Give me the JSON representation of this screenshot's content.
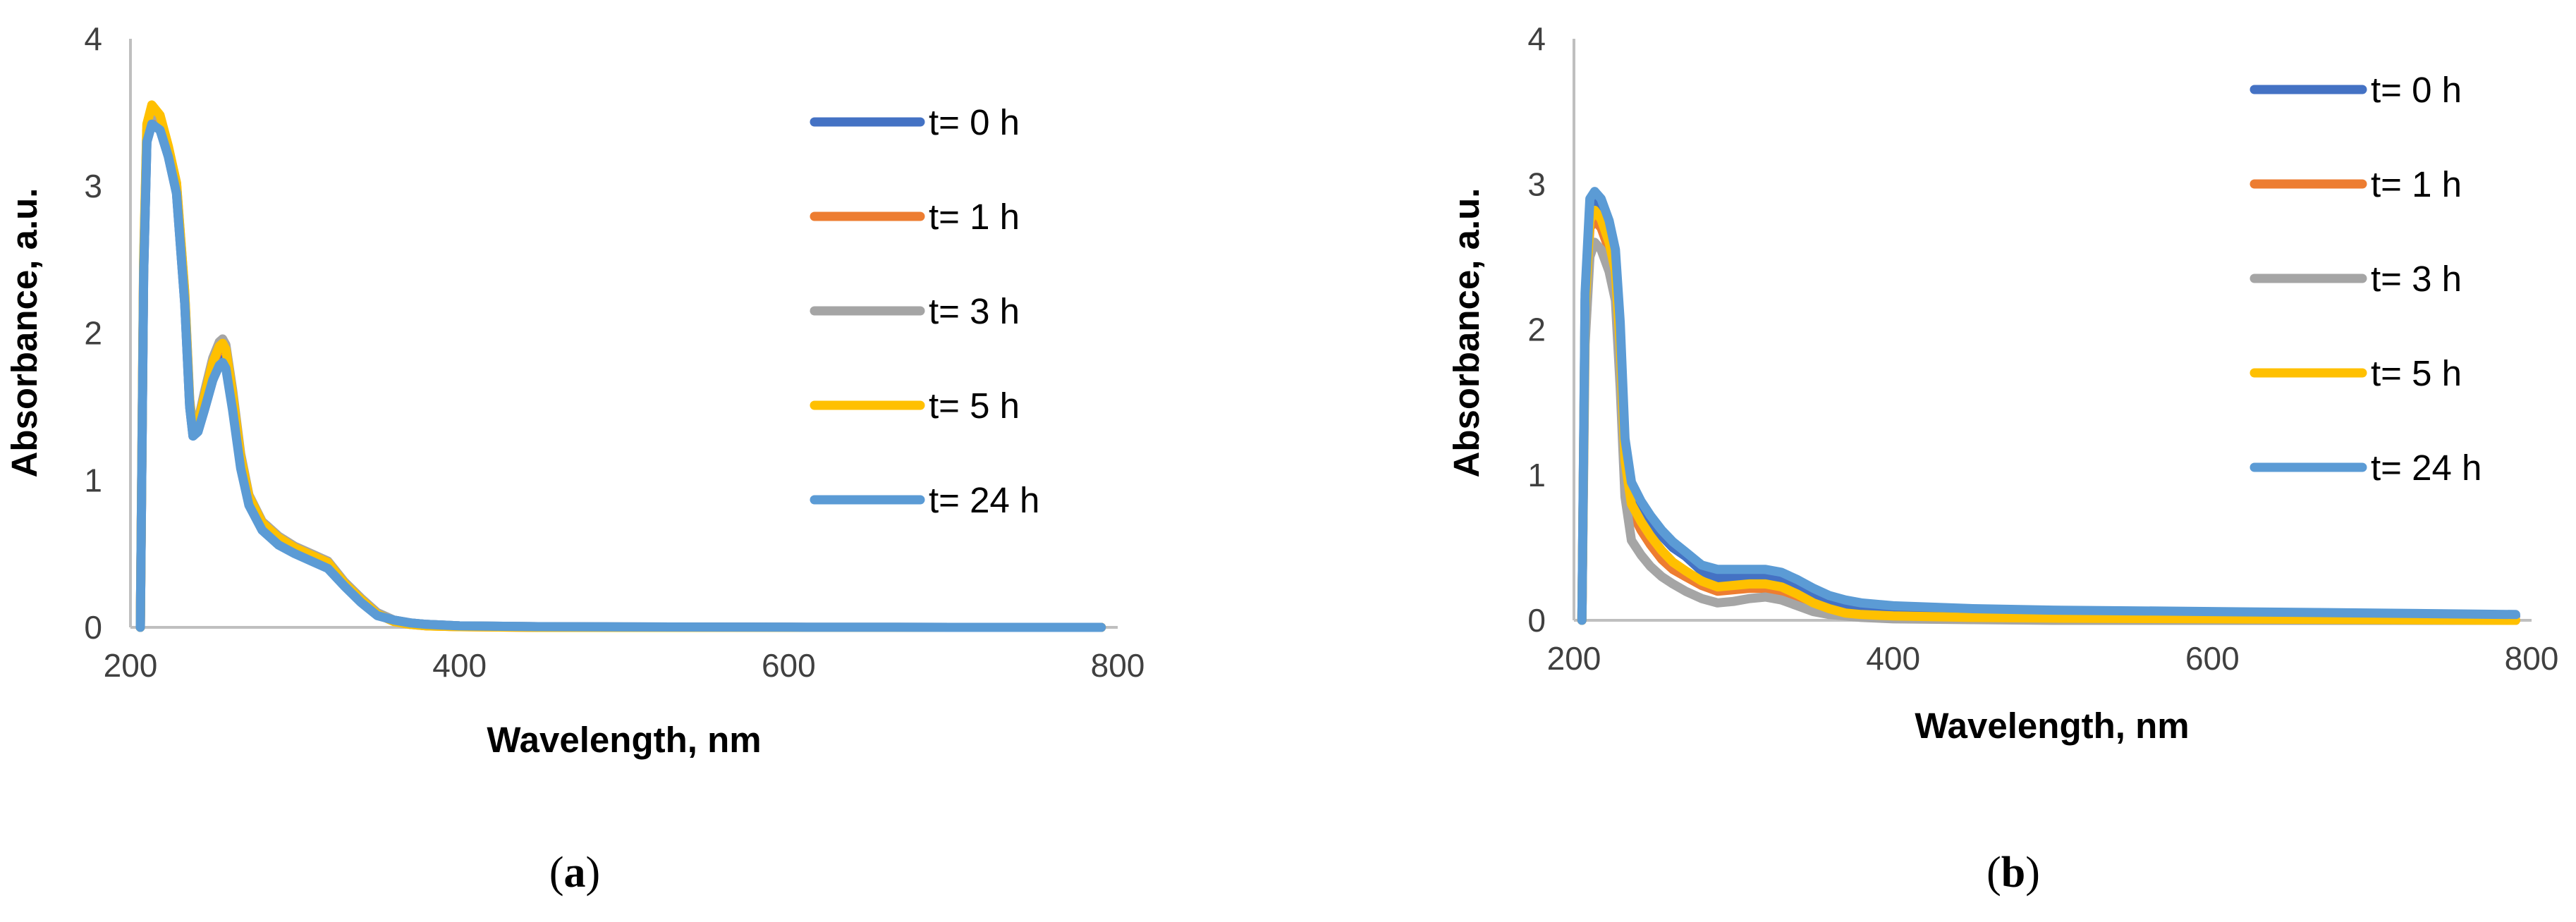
{
  "chart_data": [
    {
      "panel": "a",
      "type": "line",
      "caption": {
        "open": "(",
        "letter": "a",
        "close": ")"
      },
      "xlabel": "Wavelength, nm",
      "ylabel": "Absorbance, a.u.",
      "xlim": [
        200,
        800
      ],
      "ylim": [
        0,
        4
      ],
      "xticks": [
        "200",
        "400",
        "600",
        "800"
      ],
      "yticks": [
        "0",
        "1",
        "2",
        "3",
        "4"
      ],
      "grid": false,
      "legend_position": "right",
      "series": [
        {
          "name": "t= 0 h",
          "color": "#4472C4",
          "x": [
            206,
            208,
            210,
            213,
            218,
            223,
            228,
            233,
            236,
            238,
            241,
            245,
            250,
            254,
            256,
            258,
            262,
            267,
            272,
            280,
            290,
            300,
            310,
            320,
            325,
            330,
            340,
            350,
            360,
            370,
            380,
            400,
            450,
            500,
            600,
            700,
            790
          ],
          "y": [
            0,
            2.4,
            3.3,
            3.42,
            3.38,
            3.2,
            2.95,
            2.2,
            1.5,
            1.3,
            1.33,
            1.48,
            1.68,
            1.8,
            1.82,
            1.78,
            1.5,
            1.1,
            0.85,
            0.68,
            0.58,
            0.51,
            0.46,
            0.41,
            0.35,
            0.29,
            0.18,
            0.09,
            0.05,
            0.03,
            0.02,
            0.01,
            0.005,
            0.003,
            0.001,
            0,
            0
          ]
        },
        {
          "name": "t= 1 h",
          "color": "#ED7D31",
          "x": [
            206,
            208,
            210,
            213,
            218,
            223,
            228,
            233,
            236,
            238,
            241,
            245,
            250,
            254,
            256,
            258,
            262,
            267,
            272,
            280,
            290,
            300,
            310,
            320,
            325,
            330,
            340,
            350,
            360,
            370,
            380,
            400,
            450,
            500,
            600,
            700,
            790
          ],
          "y": [
            0,
            2.45,
            3.38,
            3.5,
            3.45,
            3.25,
            3.0,
            2.25,
            1.52,
            1.33,
            1.37,
            1.55,
            1.78,
            1.9,
            1.92,
            1.88,
            1.58,
            1.15,
            0.88,
            0.7,
            0.6,
            0.53,
            0.48,
            0.43,
            0.36,
            0.3,
            0.19,
            0.09,
            0.04,
            0.02,
            0.01,
            0.005,
            0,
            0,
            0,
            0,
            0
          ]
        },
        {
          "name": "t= 3 h",
          "color": "#A5A5A5",
          "x": [
            206,
            208,
            210,
            213,
            218,
            223,
            228,
            233,
            236,
            238,
            241,
            245,
            250,
            254,
            256,
            258,
            262,
            267,
            272,
            280,
            290,
            300,
            310,
            320,
            325,
            330,
            340,
            350,
            360,
            370,
            380,
            400,
            450,
            500,
            600,
            700,
            790
          ],
          "y": [
            0,
            2.45,
            3.38,
            3.5,
            3.46,
            3.26,
            3.02,
            2.28,
            1.55,
            1.35,
            1.4,
            1.6,
            1.83,
            1.94,
            1.96,
            1.92,
            1.62,
            1.18,
            0.9,
            0.72,
            0.62,
            0.55,
            0.5,
            0.45,
            0.38,
            0.31,
            0.2,
            0.1,
            0.05,
            0.03,
            0.02,
            0.01,
            0.005,
            0.003,
            0.001,
            0,
            0
          ]
        },
        {
          "name": "t= 5 h",
          "color": "#FFC000",
          "x": [
            206,
            208,
            210,
            213,
            218,
            223,
            228,
            233,
            236,
            238,
            241,
            245,
            250,
            254,
            256,
            258,
            262,
            267,
            272,
            280,
            290,
            300,
            310,
            320,
            325,
            330,
            340,
            350,
            360,
            370,
            380,
            400,
            450,
            500,
            600,
            700,
            790
          ],
          "y": [
            0,
            2.5,
            3.42,
            3.55,
            3.48,
            3.27,
            3.02,
            2.27,
            1.53,
            1.34,
            1.38,
            1.57,
            1.8,
            1.91,
            1.93,
            1.89,
            1.59,
            1.16,
            0.89,
            0.71,
            0.61,
            0.54,
            0.49,
            0.44,
            0.37,
            0.3,
            0.19,
            0.09,
            0.04,
            0.02,
            0.01,
            0.005,
            0,
            0,
            0,
            0,
            0
          ]
        },
        {
          "name": "t= 24 h",
          "color": "#5B9BD5",
          "x": [
            206,
            208,
            210,
            213,
            218,
            223,
            228,
            233,
            236,
            238,
            241,
            245,
            250,
            254,
            256,
            258,
            262,
            267,
            272,
            280,
            290,
            300,
            310,
            320,
            325,
            330,
            340,
            350,
            360,
            370,
            380,
            400,
            450,
            500,
            600,
            700,
            790
          ],
          "y": [
            0,
            2.4,
            3.3,
            3.42,
            3.38,
            3.2,
            2.95,
            2.2,
            1.5,
            1.3,
            1.33,
            1.48,
            1.68,
            1.78,
            1.8,
            1.76,
            1.48,
            1.08,
            0.83,
            0.66,
            0.56,
            0.5,
            0.45,
            0.4,
            0.34,
            0.28,
            0.17,
            0.08,
            0.05,
            0.03,
            0.02,
            0.01,
            0.005,
            0.003,
            0.001,
            0,
            0
          ]
        }
      ]
    },
    {
      "panel": "b",
      "type": "line",
      "caption": {
        "open": "(",
        "letter": "b",
        "close": ")"
      },
      "xlabel": "Wavelength, nm",
      "ylabel": "Absorbance, a.u.",
      "xlim": [
        200,
        800
      ],
      "ylim": [
        0,
        4
      ],
      "xticks": [
        "200",
        "400",
        "600",
        "800"
      ],
      "yticks": [
        "0",
        "1",
        "2",
        "3",
        "4"
      ],
      "grid": false,
      "legend_position": "top-right",
      "series": [
        {
          "name": "t= 0 h",
          "color": "#4472C4",
          "x": [
            205,
            207,
            210,
            213,
            217,
            222,
            226,
            229,
            232,
            236,
            242,
            248,
            255,
            262,
            270,
            280,
            290,
            300,
            310,
            320,
            330,
            340,
            350,
            360,
            370,
            380,
            400,
            450,
            500,
            600,
            700,
            790
          ],
          "y": [
            0,
            2.2,
            2.85,
            2.9,
            2.85,
            2.7,
            2.5,
            2.0,
            1.2,
            0.9,
            0.78,
            0.68,
            0.58,
            0.5,
            0.44,
            0.34,
            0.29,
            0.29,
            0.3,
            0.3,
            0.28,
            0.23,
            0.17,
            0.13,
            0.11,
            0.1,
            0.08,
            0.07,
            0.06,
            0.05,
            0.04,
            0.03
          ]
        },
        {
          "name": "t= 1 h",
          "color": "#ED7D31",
          "x": [
            205,
            207,
            210,
            213,
            217,
            222,
            226,
            229,
            232,
            236,
            242,
            248,
            255,
            262,
            270,
            280,
            290,
            300,
            310,
            320,
            330,
            340,
            350,
            360,
            370,
            380,
            400,
            450,
            500,
            600,
            700,
            790
          ],
          "y": [
            0,
            2.1,
            2.7,
            2.75,
            2.7,
            2.55,
            2.35,
            1.85,
            1.05,
            0.75,
            0.62,
            0.52,
            0.42,
            0.35,
            0.3,
            0.24,
            0.2,
            0.21,
            0.22,
            0.22,
            0.2,
            0.15,
            0.1,
            0.06,
            0.04,
            0.03,
            0.02,
            0.01,
            0.01,
            0.005,
            0,
            0
          ]
        },
        {
          "name": "t= 3 h",
          "color": "#A5A5A5",
          "x": [
            205,
            207,
            210,
            213,
            217,
            222,
            226,
            229,
            232,
            236,
            242,
            248,
            255,
            262,
            270,
            280,
            290,
            300,
            310,
            320,
            330,
            340,
            350,
            360,
            370,
            380,
            400,
            450,
            500,
            600,
            700,
            790
          ],
          "y": [
            0,
            1.9,
            2.5,
            2.6,
            2.55,
            2.4,
            2.2,
            1.6,
            0.85,
            0.55,
            0.45,
            0.37,
            0.3,
            0.25,
            0.2,
            0.15,
            0.12,
            0.13,
            0.15,
            0.16,
            0.14,
            0.1,
            0.06,
            0.04,
            0.03,
            0.02,
            0.01,
            0.005,
            0,
            0,
            0,
            0
          ]
        },
        {
          "name": "t= 5 h",
          "color": "#FFC000",
          "x": [
            205,
            207,
            210,
            213,
            217,
            222,
            226,
            229,
            232,
            236,
            242,
            248,
            255,
            262,
            270,
            280,
            290,
            300,
            310,
            320,
            330,
            340,
            350,
            360,
            370,
            380,
            400,
            450,
            500,
            600,
            700,
            790
          ],
          "y": [
            0,
            2.15,
            2.75,
            2.82,
            2.76,
            2.6,
            2.4,
            1.9,
            1.1,
            0.8,
            0.68,
            0.58,
            0.48,
            0.4,
            0.34,
            0.27,
            0.23,
            0.24,
            0.25,
            0.25,
            0.23,
            0.18,
            0.12,
            0.08,
            0.05,
            0.04,
            0.03,
            0.02,
            0.015,
            0.01,
            0.005,
            0
          ]
        },
        {
          "name": "t= 24 h",
          "color": "#5B9BD5",
          "x": [
            205,
            207,
            210,
            213,
            217,
            222,
            226,
            229,
            232,
            236,
            242,
            248,
            255,
            262,
            270,
            280,
            290,
            300,
            310,
            320,
            330,
            340,
            350,
            360,
            370,
            380,
            400,
            450,
            500,
            600,
            700,
            790
          ],
          "y": [
            0,
            2.25,
            2.9,
            2.95,
            2.9,
            2.75,
            2.55,
            2.05,
            1.25,
            0.95,
            0.82,
            0.72,
            0.62,
            0.54,
            0.47,
            0.38,
            0.35,
            0.35,
            0.35,
            0.35,
            0.33,
            0.28,
            0.22,
            0.17,
            0.14,
            0.12,
            0.1,
            0.08,
            0.07,
            0.06,
            0.05,
            0.04
          ]
        }
      ]
    }
  ]
}
